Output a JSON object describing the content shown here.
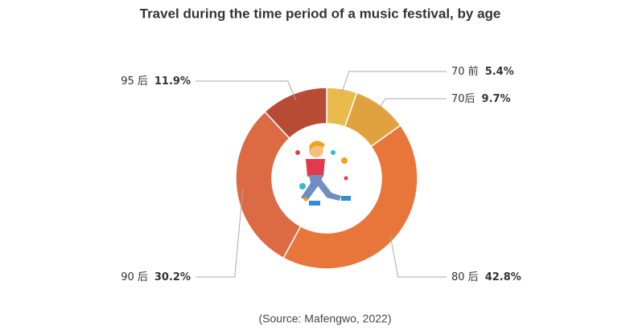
{
  "chart_data": {
    "type": "donut",
    "title": "Travel during the time period of a music festival, by age",
    "source": "(Source: Mafengwo, 2022)",
    "categories": [
      "70 前",
      "70后",
      "80 后",
      "90 后",
      "95 后"
    ],
    "values": [
      5.4,
      9.7,
      42.8,
      30.2,
      11.9
    ],
    "value_labels": [
      "5.4%",
      "9.7%",
      "42.8%",
      "30.2%",
      "11.9%"
    ],
    "colors": [
      "#e9bb4c",
      "#e0a23f",
      "#e8763b",
      "#dc6b43",
      "#b84b33"
    ]
  }
}
